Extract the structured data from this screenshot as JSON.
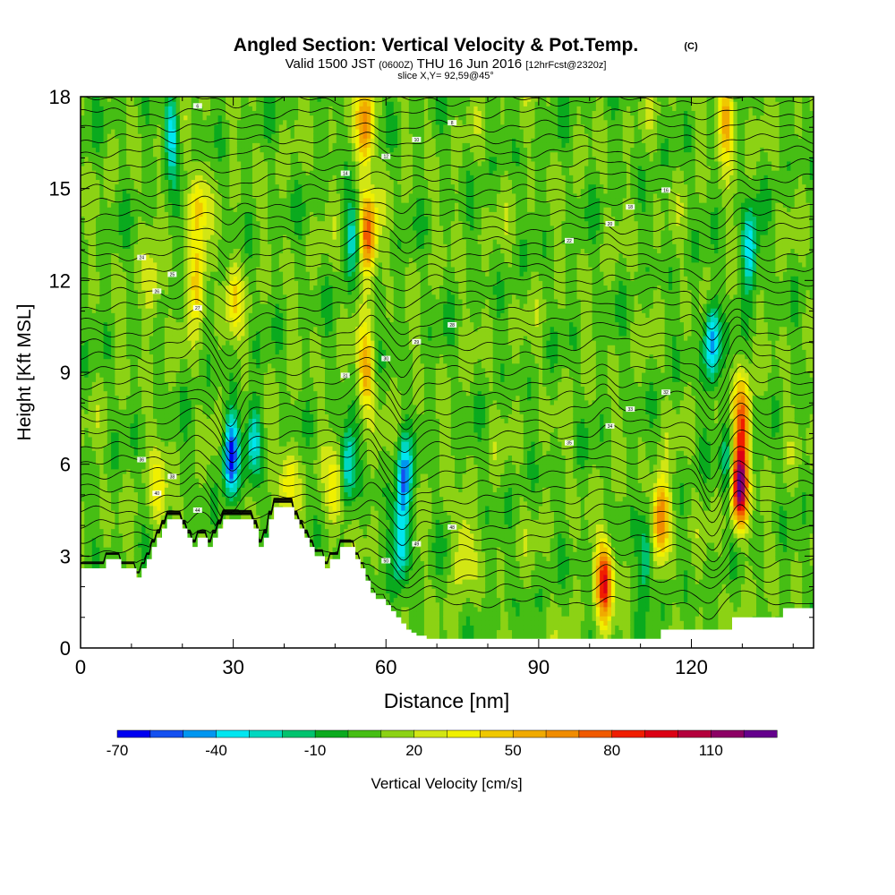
{
  "chart_data": {
    "type": "heatmap",
    "title": "Angled Section: Vertical Velocity & Pot.Temp.",
    "title_unit": "(C)",
    "subtitle_valid": "Valid 1500 JST",
    "subtitle_z": "(0600Z)",
    "subtitle_date": "THU 16 Jun 2016",
    "subtitle_fcst": "[12hrFcst@2320z]",
    "slice_label": "slice X,Y= 92,59@45°",
    "xlabel": "Distance [nm]",
    "ylabel": "Height [Kft MSL]",
    "xlim": [
      0,
      144
    ],
    "ylim": [
      0,
      18
    ],
    "x_ticks": [
      "0",
      "30",
      "60",
      "90",
      "120"
    ],
    "x_tick_values": [
      0,
      30,
      60,
      90,
      120
    ],
    "y_ticks": [
      "0",
      "3",
      "6",
      "9",
      "12",
      "15",
      "18"
    ],
    "y_tick_values": [
      0,
      3,
      6,
      9,
      12,
      15,
      18
    ],
    "colorbar": {
      "label": "Vertical Velocity [cm/s]",
      "min": -70,
      "step": 10,
      "tick_labels": [
        "-70",
        "-40",
        "-10",
        "20",
        "50",
        "80",
        "110"
      ],
      "tick_values": [
        -70,
        -40,
        -10,
        20,
        50,
        80,
        110
      ],
      "colors": [
        "#0000f0",
        "#1450f0",
        "#0096f0",
        "#00e6f0",
        "#00d7c0",
        "#00c36e",
        "#0aaa1e",
        "#46be14",
        "#8cd214",
        "#d2e614",
        "#f0f000",
        "#f0c800",
        "#f0aa00",
        "#f08c00",
        "#f05a00",
        "#f01e00",
        "#dc0014",
        "#b4003c",
        "#8c0064",
        "#64008c"
      ]
    },
    "terrain": [
      [
        0,
        2.6
      ],
      [
        4,
        2.6
      ],
      [
        5,
        2.9
      ],
      [
        7,
        2.9
      ],
      [
        8,
        2.6
      ],
      [
        10,
        2.6
      ],
      [
        11,
        2.3
      ],
      [
        12,
        2.6
      ],
      [
        13,
        2.9
      ],
      [
        14,
        3.3
      ],
      [
        15,
        3.6
      ],
      [
        16,
        3.9
      ],
      [
        17,
        4.2
      ],
      [
        19,
        4.2
      ],
      [
        20,
        3.9
      ],
      [
        21,
        3.6
      ],
      [
        22,
        3.3
      ],
      [
        23,
        3.6
      ],
      [
        25,
        3.3
      ],
      [
        26,
        3.6
      ],
      [
        27,
        3.9
      ],
      [
        28,
        4.2
      ],
      [
        33,
        4.2
      ],
      [
        34,
        3.9
      ],
      [
        35,
        3.3
      ],
      [
        36,
        3.6
      ],
      [
        37,
        4.2
      ],
      [
        38,
        4.6
      ],
      [
        41,
        4.6
      ],
      [
        42,
        4.2
      ],
      [
        43,
        3.9
      ],
      [
        44,
        3.6
      ],
      [
        45,
        3.3
      ],
      [
        46,
        3.0
      ],
      [
        47,
        3.0
      ],
      [
        48,
        2.6
      ],
      [
        49,
        2.9
      ],
      [
        51,
        3.3
      ],
      [
        53,
        3.3
      ],
      [
        54,
        2.9
      ],
      [
        55,
        2.6
      ],
      [
        56,
        2.2
      ],
      [
        57,
        1.8
      ],
      [
        58,
        1.6
      ],
      [
        59,
        1.6
      ],
      [
        60,
        1.4
      ],
      [
        61,
        1.2
      ],
      [
        62,
        1.0
      ],
      [
        63,
        0.8
      ],
      [
        64,
        0.6
      ],
      [
        65,
        0.5
      ],
      [
        66,
        0.4
      ],
      [
        68,
        0.3
      ],
      [
        113,
        0.3
      ],
      [
        114,
        0.6
      ],
      [
        127,
        0.6
      ],
      [
        128,
        1.0
      ],
      [
        137,
        1.0
      ],
      [
        138,
        1.3
      ],
      [
        144,
        1.3
      ]
    ],
    "updrafts": [
      {
        "x": 103,
        "y": 2.2,
        "peak": 85
      },
      {
        "x": 129.5,
        "y": 5.3,
        "peak": 112
      },
      {
        "x": 56.5,
        "y": 13.5,
        "peak": 75
      },
      {
        "x": 56,
        "y": 17,
        "peak": 62
      },
      {
        "x": 56,
        "y": 9.0,
        "peak": 48
      },
      {
        "x": 114,
        "y": 4.3,
        "peak": 68
      },
      {
        "x": 130,
        "y": 7.5,
        "peak": 62
      },
      {
        "x": 23,
        "y": 12.0,
        "peak": 42
      },
      {
        "x": 23,
        "y": 14.5,
        "peak": 36
      },
      {
        "x": 30,
        "y": 11.5,
        "peak": 30
      },
      {
        "x": 50,
        "y": 5.0,
        "peak": 38
      },
      {
        "x": 41,
        "y": 5.5,
        "peak": 32
      },
      {
        "x": 127,
        "y": 17.3,
        "peak": 55
      },
      {
        "x": 15.5,
        "y": 5.0,
        "peak": 30
      },
      {
        "x": 14,
        "y": 11.5,
        "peak": 26
      },
      {
        "x": 75,
        "y": 3.3,
        "peak": 26
      }
    ],
    "downdrafts": [
      {
        "x": 29.5,
        "y": 6.3,
        "peak": -72
      },
      {
        "x": 124,
        "y": 10.0,
        "peak": -60
      },
      {
        "x": 131.5,
        "y": 13.0,
        "peak": -50
      },
      {
        "x": 63.5,
        "y": 5.5,
        "peak": -55
      },
      {
        "x": 63,
        "y": 3.5,
        "peak": -50
      },
      {
        "x": 52.5,
        "y": 6.0,
        "peak": -45
      },
      {
        "x": 18,
        "y": 16.8,
        "peak": -45
      },
      {
        "x": 34,
        "y": 6.8,
        "peak": -38
      },
      {
        "x": 111,
        "y": 3.0,
        "peak": -40
      },
      {
        "x": 53.5,
        "y": 13.5,
        "peak": -30
      },
      {
        "x": 127,
        "y": 6.0,
        "peak": -25
      }
    ],
    "theta_isentropes": {
      "count": 41,
      "base_height": 1.5,
      "spacing": 0.42,
      "waves": [
        {
          "x": 29.5,
          "amp": -0.9
        },
        {
          "x": 63.5,
          "amp": -0.7
        },
        {
          "x": 124,
          "amp": -0.9
        },
        {
          "x": 56.5,
          "amp": 0.6
        },
        {
          "x": 129.5,
          "amp": 0.6
        },
        {
          "x": 103,
          "amp": 0.3
        },
        {
          "x": 23,
          "amp": 0.4
        }
      ],
      "label_values": [
        "52",
        "50",
        "49",
        "48",
        "44",
        "40",
        "38",
        "36",
        "35",
        "34",
        "33",
        "32",
        "31",
        "30",
        "29",
        "28",
        "27",
        "26",
        "25",
        "24",
        "22",
        "20",
        "18",
        "16",
        "14",
        "12",
        "10",
        "8",
        "6"
      ]
    }
  }
}
